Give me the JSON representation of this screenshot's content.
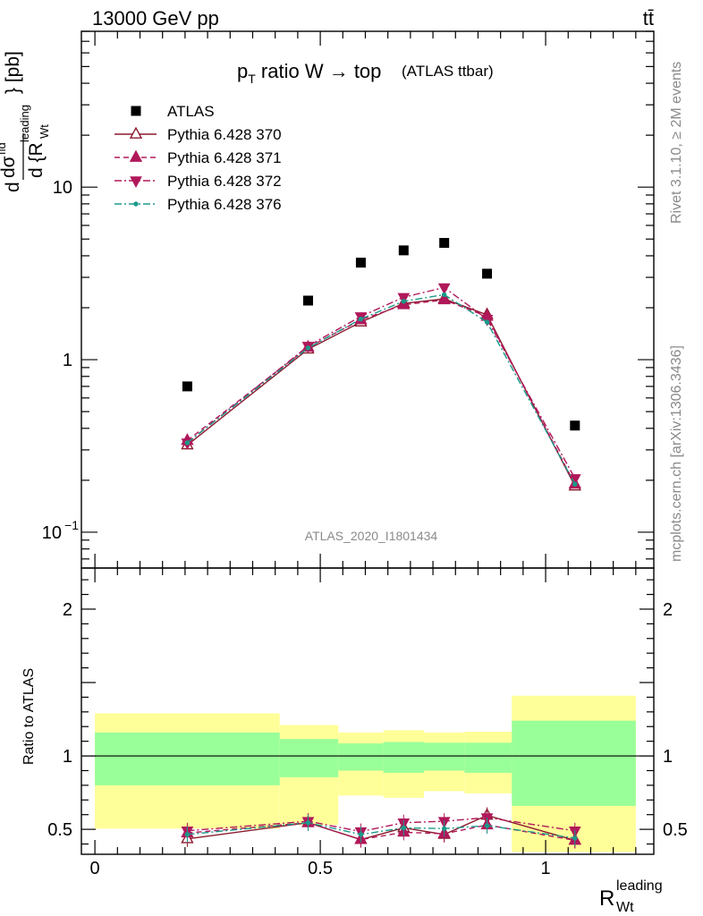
{
  "header": {
    "energy": "13000 GeV pp",
    "process": "tt̄"
  },
  "side_text": {
    "rivet": "Rivet 3.1.10, ≥ 2M events",
    "source": "mcplots.cern.ch [arXiv:1306.3436]"
  },
  "watermark": "ATLAS_2020_I1801434",
  "chart_data": [
    {
      "type": "scatter",
      "panel": "main",
      "title": "p_T ratio W → top (ATLAS ttbar)",
      "title_main": "p",
      "title_sub": "T",
      "title_rest": " ratio W → top",
      "title_small": "(ATLAS ttbar)",
      "ylabel": "d σ^fid / d {R_Wt^leading} [pb]",
      "ylabel_parts": {
        "d": "d",
        "sigma": "dσ",
        "fid": "fid",
        "denom": "d {R",
        "leading": "leading",
        "wt": "Wt",
        "unit": "} [pb]"
      },
      "xlabel": "R_Wt^leading",
      "xlabel_parts": {
        "base": "R",
        "sup": "leading",
        "sub": "Wt"
      },
      "yscale": "log",
      "xlim": [
        -0.03,
        1.24
      ],
      "ylim": [
        0.062,
        80
      ],
      "yticks": [
        {
          "value": 0.1,
          "label": "10",
          "exp": "−1"
        },
        {
          "value": 1,
          "label": "1",
          "exp": ""
        },
        {
          "value": 10,
          "label": "10",
          "exp": ""
        }
      ],
      "legend_position": "top-left",
      "x": [
        0.205,
        0.473,
        0.59,
        0.685,
        0.775,
        0.87,
        1.065
      ],
      "series": [
        {
          "name": "ATLAS",
          "color": "#000000",
          "marker": "square",
          "line": "none",
          "values": [
            0.7,
            2.2,
            3.65,
            4.3,
            4.75,
            3.15,
            0.415
          ]
        },
        {
          "name": "Pythia 6.428 370",
          "color": "#8b1a2e",
          "marker": "triangle-up-open",
          "line": "solid",
          "values": [
            0.32,
            1.15,
            1.65,
            2.12,
            2.25,
            1.82,
            0.185
          ]
        },
        {
          "name": "Pythia 6.428 371",
          "color": "#b0185a",
          "marker": "triangle-up",
          "line": "dashed",
          "values": [
            0.34,
            1.18,
            1.7,
            2.08,
            2.22,
            1.78,
            0.19
          ]
        },
        {
          "name": "Pythia 6.428 372",
          "color": "#b0185a",
          "marker": "triangle-down",
          "line": "dashdot",
          "values": [
            0.33,
            1.2,
            1.78,
            2.3,
            2.62,
            1.72,
            0.205
          ]
        },
        {
          "name": "Pythia 6.428 376",
          "color": "#1a9a8a",
          "marker": "dot",
          "line": "dashdot",
          "values": [
            0.33,
            1.17,
            1.72,
            2.18,
            2.38,
            1.65,
            0.19
          ]
        }
      ]
    },
    {
      "type": "area",
      "panel": "ratio",
      "ylabel": "Ratio to ATLAS",
      "ylim": [
        0.33,
        2.28
      ],
      "xlim": [
        -0.03,
        1.24
      ],
      "xticks": [
        {
          "value": 0,
          "label": "0"
        },
        {
          "value": 0.5,
          "label": "0.5"
        },
        {
          "value": 1,
          "label": "1"
        }
      ],
      "yticks": [
        {
          "value": 0.5,
          "label": "0.5"
        },
        {
          "value": 1,
          "label": "1"
        },
        {
          "value": 2,
          "label": "2"
        }
      ],
      "reference_line": 1,
      "bins": [
        {
          "x0": 0.0,
          "x1": 0.41,
          "yellow": [
            0.505,
            1.29
          ],
          "green": [
            0.8,
            1.16
          ]
        },
        {
          "x0": 0.41,
          "x1": 0.54,
          "yellow": [
            0.53,
            1.21
          ],
          "green": [
            0.855,
            1.115
          ]
        },
        {
          "x0": 0.54,
          "x1": 0.64,
          "yellow": [
            0.73,
            1.16
          ],
          "green": [
            0.9,
            1.085
          ]
        },
        {
          "x0": 0.64,
          "x1": 0.73,
          "yellow": [
            0.715,
            1.175
          ],
          "green": [
            0.885,
            1.095
          ]
        },
        {
          "x0": 0.73,
          "x1": 0.82,
          "yellow": [
            0.76,
            1.16
          ],
          "green": [
            0.9,
            1.09
          ]
        },
        {
          "x0": 0.82,
          "x1": 0.925,
          "yellow": [
            0.745,
            1.165
          ],
          "green": [
            0.885,
            1.09
          ]
        },
        {
          "x0": 0.925,
          "x1": 1.2,
          "yellow": [
            0.345,
            1.41
          ],
          "green": [
            0.66,
            1.24
          ]
        }
      ],
      "x": [
        0.205,
        0.473,
        0.59,
        0.685,
        0.775,
        0.87,
        1.065
      ],
      "series": [
        {
          "name": "Pythia 6.428 370",
          "color": "#8b1a2e",
          "marker": "triangle-up-open",
          "line": "solid",
          "values": [
            0.435,
            0.545,
            0.43,
            0.51,
            0.465,
            0.595,
            0.425
          ]
        },
        {
          "name": "Pythia 6.428 371",
          "color": "#b0185a",
          "marker": "triangle-up",
          "line": "dashed",
          "values": [
            0.475,
            0.545,
            0.43,
            0.48,
            0.47,
            0.53,
            0.425
          ]
        },
        {
          "name": "Pythia 6.428 372",
          "color": "#b0185a",
          "marker": "triangle-down",
          "line": "dashdot",
          "values": [
            0.49,
            0.555,
            0.485,
            0.545,
            0.555,
            0.58,
            0.49
          ]
        },
        {
          "name": "Pythia 6.428 376",
          "color": "#1a9a8a",
          "marker": "dot",
          "line": "dashdot",
          "values": [
            0.465,
            0.545,
            0.465,
            0.51,
            0.505,
            0.525,
            0.44
          ]
        }
      ]
    }
  ]
}
